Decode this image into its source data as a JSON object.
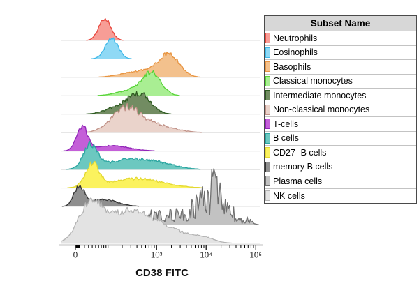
{
  "chart_data": {
    "type": "area",
    "subtype": "flow-cytometry-ridgeline-histograms",
    "title": "",
    "xlabel": "CD38 FITC",
    "legend_title": "Subset Name",
    "x_axis": {
      "scale": "biexponential-log",
      "range_hint": [
        0,
        100000
      ],
      "major_ticks": [
        {
          "value": 0,
          "label": "0"
        },
        {
          "value": 1000,
          "label": "10³"
        },
        {
          "value": 10000,
          "label": "10⁴"
        },
        {
          "value": 100000,
          "label": "10⁵"
        }
      ]
    },
    "grid": "row-baselines",
    "legend_position": "right",
    "series": [
      {
        "name": "Neutrophils",
        "stroke": "#e8483f",
        "fill": "#f79d96",
        "height": 32,
        "noise": 0.1,
        "peaks": [
          {
            "center": 85,
            "spread": 0.03,
            "amp": 1.0
          }
        ]
      },
      {
        "name": "Eosinophils",
        "stroke": "#3fb8e8",
        "fill": "#8fd9f5",
        "height": 30,
        "noise": 0.1,
        "peaks": [
          {
            "center": 120,
            "spread": 0.032,
            "amp": 1.0
          }
        ]
      },
      {
        "name": "Basophils",
        "stroke": "#e89440",
        "fill": "#f3c18d",
        "height": 31,
        "noise": 0.12,
        "peaks": [
          {
            "center": 1800,
            "spread": 0.052,
            "amp": 1.0
          },
          {
            "center": 500,
            "spread": 0.09,
            "amp": 0.3
          }
        ]
      },
      {
        "name": "Classical monocytes",
        "stroke": "#57d337",
        "fill": "#a9ee93",
        "height": 31,
        "noise": 0.12,
        "peaks": [
          {
            "center": 800,
            "spread": 0.048,
            "amp": 1.0
          },
          {
            "center": 300,
            "spread": 0.07,
            "amp": 0.25
          }
        ]
      },
      {
        "name": "Intermediate monocytes",
        "stroke": "#2e5b21",
        "fill": "#728c62",
        "height": 30,
        "noise": 0.18,
        "peaks": [
          {
            "center": 450,
            "spread": 0.055,
            "amp": 1.0
          },
          {
            "center": 150,
            "spread": 0.06,
            "amp": 0.3
          }
        ]
      },
      {
        "name": "Non-classical monocytes",
        "stroke": "#c09187",
        "fill": "#ead3cb",
        "height": 32,
        "noise": 0.15,
        "peaks": [
          {
            "center": 230,
            "spread": 0.07,
            "amp": 1.0
          },
          {
            "center": 800,
            "spread": 0.1,
            "amp": 0.35
          }
        ]
      },
      {
        "name": "T-cells",
        "stroke": "#9126b8",
        "fill": "#c45fd8",
        "height": 34,
        "noise": 0.12,
        "peaks": [
          {
            "center": 15,
            "spread": 0.028,
            "amp": 1.0
          },
          {
            "center": 120,
            "spread": 0.09,
            "amp": 0.22
          }
        ]
      },
      {
        "name": "B cells",
        "stroke": "#2aa5a0",
        "fill": "#6cc8c0",
        "height": 33,
        "noise": 0.15,
        "peaks": [
          {
            "center": 35,
            "spread": 0.035,
            "amp": 1.0
          },
          {
            "center": 300,
            "spread": 0.12,
            "amp": 0.45
          },
          {
            "center": 1500,
            "spread": 0.08,
            "amp": 0.12
          }
        ]
      },
      {
        "name": "CD27- B cells",
        "stroke": "#e3d832",
        "fill": "#fbf25e",
        "height": 32,
        "noise": 0.15,
        "peaks": [
          {
            "center": 40,
            "spread": 0.035,
            "amp": 1.0
          },
          {
            "center": 400,
            "spread": 0.13,
            "amp": 0.42
          }
        ]
      },
      {
        "name": "memory B cells",
        "stroke": "#333333",
        "fill": "#8f8f8f",
        "height": 28,
        "noise": 0.15,
        "peaks": [
          {
            "center": 8,
            "spread": 0.026,
            "amp": 1.0
          },
          {
            "center": 80,
            "spread": 0.07,
            "amp": 0.35
          }
        ]
      },
      {
        "name": "Plasma cells",
        "stroke": "#6f6f6f",
        "fill": "#c2c2c2",
        "height": 34,
        "noise": 0.75,
        "peaks": [
          {
            "center": 500,
            "spread": 0.08,
            "amp": 0.22
          },
          {
            "center": 2500,
            "spread": 0.12,
            "amp": 0.35
          },
          {
            "center": 8000,
            "spread": 0.05,
            "amp": 0.55
          },
          {
            "center": 15000,
            "spread": 0.035,
            "amp": 1.0
          },
          {
            "center": 30000,
            "spread": 0.035,
            "amp": 0.45
          },
          {
            "center": 70000,
            "spread": 0.02,
            "amp": 0.18
          }
        ]
      },
      {
        "name": "NK cells",
        "stroke": "#b3b3b3",
        "fill": "#e3e3e3",
        "height": 52,
        "noise": 0.1,
        "peaks": [
          {
            "center": 35,
            "spread": 0.06,
            "amp": 1.0
          },
          {
            "center": 250,
            "spread": 0.11,
            "amp": 0.8
          },
          {
            "center": 1500,
            "spread": 0.12,
            "amp": 0.35
          },
          {
            "center": 9000,
            "spread": 0.05,
            "amp": 0.1
          }
        ]
      }
    ]
  }
}
